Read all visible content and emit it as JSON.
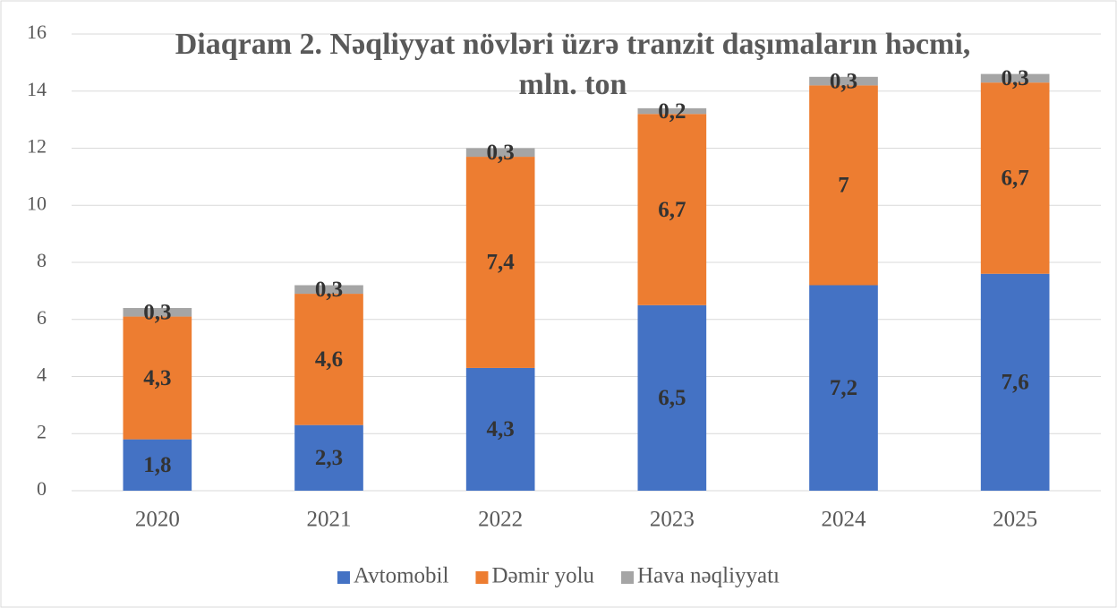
{
  "chart_data": {
    "type": "bar",
    "stacked": true,
    "title": [
      "Diaqram 2. Nəqliyyat növləri üzrə tranzit daşımaların həcmi,",
      "mln. ton"
    ],
    "categories": [
      "2020",
      "2021",
      "2022",
      "2023",
      "2024",
      "2025"
    ],
    "series": [
      {
        "name": "Avtomobil",
        "color": "#4472c4",
        "values": [
          1.8,
          2.3,
          4.3,
          6.5,
          7.2,
          7.6
        ],
        "value_labels": [
          "1,8",
          "2,3",
          "4,3",
          "6,5",
          "7,2",
          "7,6"
        ]
      },
      {
        "name": "Dəmir yolu",
        "color": "#ed7d31",
        "values": [
          4.3,
          4.6,
          7.4,
          6.7,
          7,
          6.7
        ],
        "value_labels": [
          "4,3",
          "4,6",
          "7,4",
          "6,7",
          "7",
          "6,7"
        ]
      },
      {
        "name": "Hava nəqliyyatı",
        "color": "#a5a5a5",
        "values": [
          0.3,
          0.3,
          0.3,
          0.2,
          0.3,
          0.3
        ],
        "value_labels": [
          "0,3",
          "0,3",
          "0,3",
          "0,2",
          "0,3",
          "0,3"
        ]
      }
    ],
    "ylim": [
      0,
      16
    ],
    "yticks": [
      0,
      2,
      4,
      6,
      8,
      10,
      12,
      14,
      16
    ],
    "grid": true,
    "legend": "bottom"
  }
}
